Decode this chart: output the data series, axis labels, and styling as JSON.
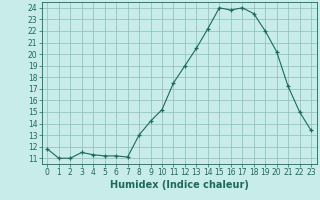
{
  "x": [
    0,
    1,
    2,
    3,
    4,
    5,
    6,
    7,
    8,
    9,
    10,
    11,
    12,
    13,
    14,
    15,
    16,
    17,
    18,
    19,
    20,
    21,
    22,
    23
  ],
  "y": [
    11.8,
    11.0,
    11.0,
    11.5,
    11.3,
    11.2,
    11.2,
    11.1,
    13.0,
    14.2,
    15.2,
    17.5,
    19.0,
    20.5,
    22.2,
    24.0,
    23.8,
    24.0,
    23.5,
    22.0,
    20.2,
    17.2,
    15.0,
    13.4
  ],
  "xlabel": "Humidex (Indice chaleur)",
  "ylabel": "",
  "xlim": [
    -0.5,
    23.5
  ],
  "ylim": [
    10.5,
    24.5
  ],
  "yticks": [
    11,
    12,
    13,
    14,
    15,
    16,
    17,
    18,
    19,
    20,
    21,
    22,
    23,
    24
  ],
  "xticks": [
    0,
    1,
    2,
    3,
    4,
    5,
    6,
    7,
    8,
    9,
    10,
    11,
    12,
    13,
    14,
    15,
    16,
    17,
    18,
    19,
    20,
    21,
    22,
    23
  ],
  "line_color": "#1a6b5a",
  "marker_color": "#1a6b5a",
  "bg_color": "#c8ece9",
  "grid_color": "#8bbdb8",
  "label_fontsize": 7.0,
  "tick_fontsize": 5.5
}
